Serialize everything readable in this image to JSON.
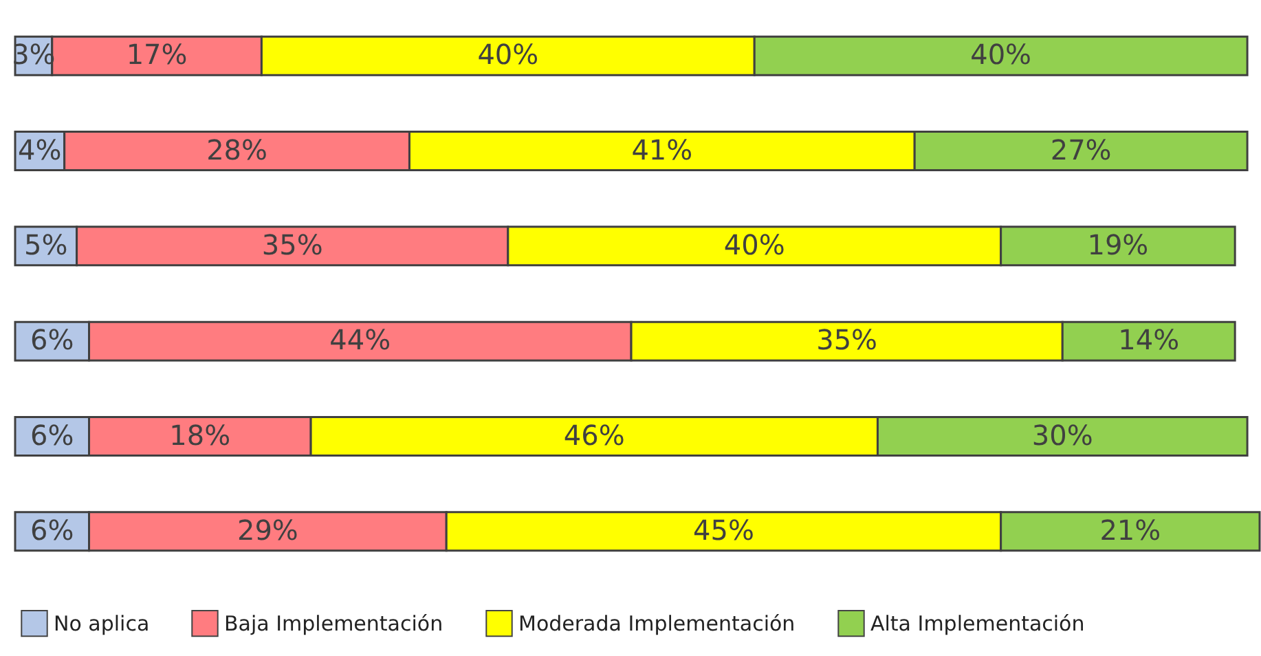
{
  "chart_data": {
    "type": "bar",
    "orientation": "horizontal",
    "stacked": true,
    "legend": "bottom",
    "grid": false,
    "categories": [
      null,
      null,
      null,
      null,
      null,
      null
    ],
    "series": [
      {
        "name": "No aplica",
        "color": "#b4c7e7",
        "values": [
          3,
          4,
          5,
          6,
          6,
          6
        ],
        "value_labels": [
          "3%",
          "4%",
          "5%",
          "6%",
          "6%",
          "6%"
        ]
      },
      {
        "name": "Baja Implementación",
        "color": "#ff7c80",
        "values": [
          17,
          28,
          35,
          44,
          18,
          29
        ],
        "value_labels": [
          "17%",
          "28%",
          "35%",
          "44%",
          "18%",
          "29%"
        ]
      },
      {
        "name": "Moderada Implementación",
        "color": "#ffff00",
        "values": [
          40,
          41,
          40,
          35,
          46,
          45
        ],
        "value_labels": [
          "40%",
          "41%",
          "40%",
          "35%",
          "46%",
          "45%"
        ]
      },
      {
        "name": "Alta Implementación",
        "color": "#92d050",
        "values": [
          40,
          27,
          19,
          14,
          30,
          21
        ],
        "value_labels": [
          "40%",
          "27%",
          "19%",
          "14%",
          "30%",
          "21%"
        ]
      }
    ]
  }
}
